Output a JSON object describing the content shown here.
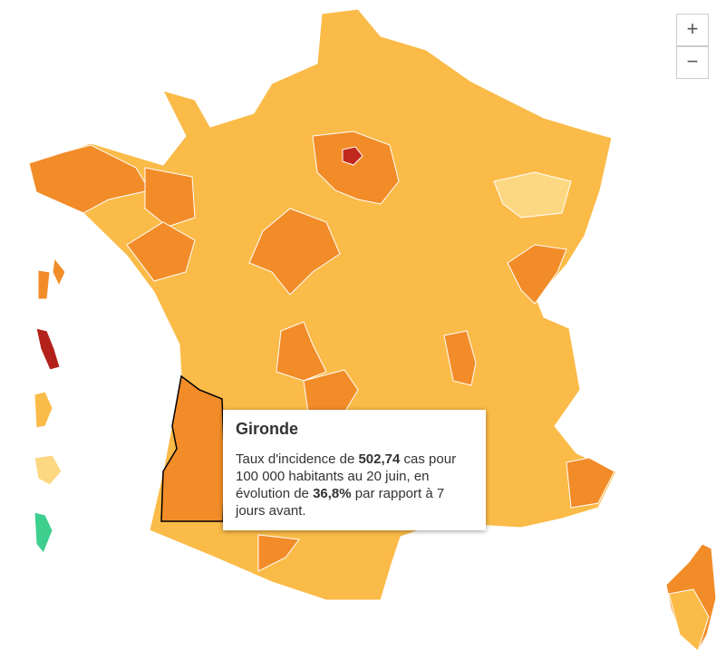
{
  "tooltip": {
    "title": "Gironde",
    "parts": [
      "Taux d'incidence de",
      "502,74",
      "cas pour 100 000 habitants au 20 juin, en évolution de",
      "36,8%",
      "par rapport à 7 jours avant."
    ]
  },
  "zoom": {
    "in": "+",
    "out": "−"
  }
}
